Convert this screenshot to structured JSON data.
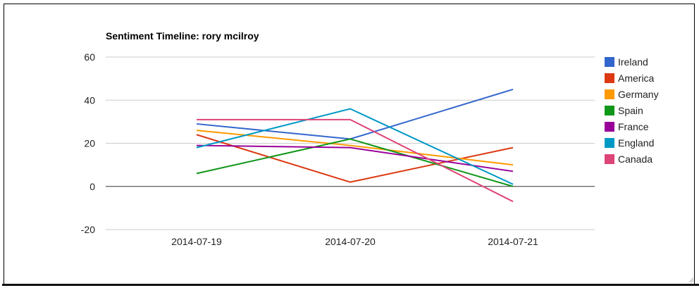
{
  "chart_data": {
    "type": "line",
    "title": "Sentiment Timeline: rory mcilroy",
    "xlabel": "",
    "ylabel": "",
    "categories": [
      "2014-07-19",
      "2014-07-20",
      "2014-07-21"
    ],
    "ylim": [
      -20,
      60
    ],
    "yticks": [
      "60",
      "40",
      "20",
      "0",
      "-20"
    ],
    "ytick_values": [
      60,
      40,
      20,
      0,
      -20
    ],
    "grid": true,
    "legend_position": "right",
    "series": [
      {
        "name": "Ireland",
        "color": "#3366cc",
        "values": [
          29,
          22,
          45
        ]
      },
      {
        "name": "America",
        "color": "#dc3912",
        "values": [
          24,
          2,
          18
        ]
      },
      {
        "name": "Germany",
        "color": "#ff9900",
        "values": [
          26,
          19,
          10
        ]
      },
      {
        "name": "Spain",
        "color": "#109618",
        "values": [
          6,
          22,
          0
        ]
      },
      {
        "name": "France",
        "color": "#990099",
        "values": [
          19,
          18,
          7
        ]
      },
      {
        "name": "England",
        "color": "#0099c6",
        "values": [
          18,
          36,
          1
        ]
      },
      {
        "name": "Canada",
        "color": "#dd4477",
        "values": [
          31,
          31,
          -7
        ]
      }
    ]
  }
}
